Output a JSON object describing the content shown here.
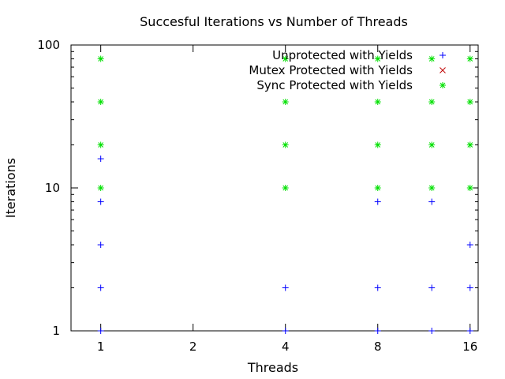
{
  "chart_data": {
    "type": "scatter",
    "title": "Succesful Iterations vs Number of Threads",
    "xlabel": "Threads",
    "ylabel": "Iterations",
    "x_scale": "log2",
    "y_scale": "log10",
    "xlim": [
      0.8,
      17
    ],
    "ylim": [
      1,
      100
    ],
    "x_ticks": [
      1,
      2,
      4,
      8,
      16
    ],
    "y_ticks": [
      1,
      10,
      100
    ],
    "legend_position": "top-right",
    "grid": false,
    "series": [
      {
        "name": "Unprotected with Yields",
        "marker": "plus",
        "color": "#0000ff",
        "points": [
          [
            1,
            1
          ],
          [
            1,
            2
          ],
          [
            1,
            4
          ],
          [
            1,
            8
          ],
          [
            1,
            16
          ],
          [
            4,
            1
          ],
          [
            4,
            2
          ],
          [
            8,
            1
          ],
          [
            8,
            2
          ],
          [
            8,
            8
          ],
          [
            12,
            1
          ],
          [
            12,
            2
          ],
          [
            12,
            8
          ],
          [
            16,
            1
          ],
          [
            16,
            2
          ],
          [
            16,
            4
          ]
        ]
      },
      {
        "name": "Mutex Protected with Yields",
        "marker": "cross",
        "color": "#c00000",
        "points": []
      },
      {
        "name": "Sync Protected with Yields",
        "marker": "star",
        "color": "#00e000",
        "points": [
          [
            1,
            10
          ],
          [
            1,
            20
          ],
          [
            1,
            40
          ],
          [
            1,
            80
          ],
          [
            4,
            10
          ],
          [
            4,
            20
          ],
          [
            4,
            40
          ],
          [
            4,
            80
          ],
          [
            8,
            10
          ],
          [
            8,
            20
          ],
          [
            8,
            40
          ],
          [
            8,
            80
          ],
          [
            12,
            10
          ],
          [
            12,
            20
          ],
          [
            12,
            40
          ],
          [
            12,
            80
          ],
          [
            16,
            10
          ],
          [
            16,
            20
          ],
          [
            16,
            40
          ],
          [
            16,
            80
          ]
        ]
      }
    ]
  }
}
